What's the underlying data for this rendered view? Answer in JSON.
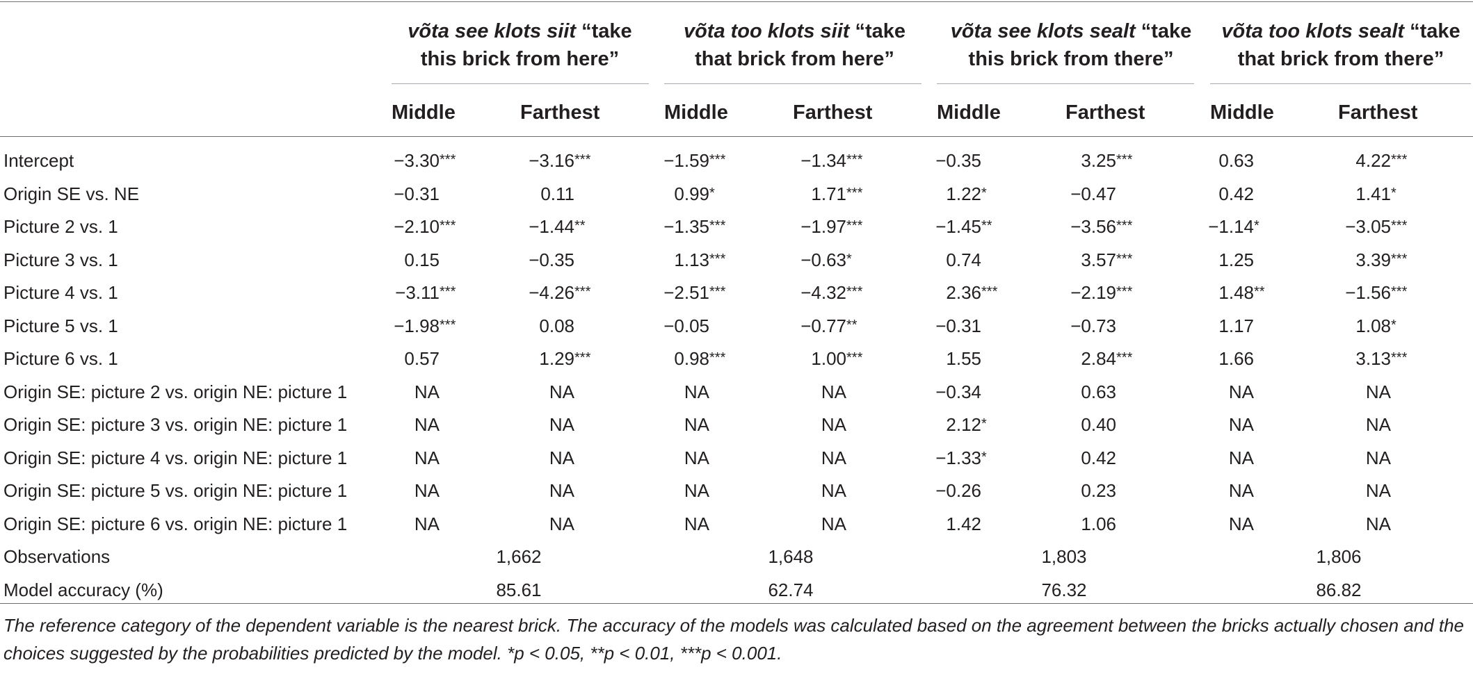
{
  "table": {
    "groups": [
      {
        "term": "võta see klots siit",
        "gloss_tail": " “take",
        "line2": "this brick from here”"
      },
      {
        "term": "võta too klots siit",
        "gloss_tail": " “take",
        "line2": "that brick from here”"
      },
      {
        "term": "võta see klots sealt",
        "gloss_tail": " “take",
        "line2": "this brick from there”"
      },
      {
        "term": "võta too klots sealt",
        "gloss_tail": " “take",
        "line2": "that brick from there”"
      }
    ],
    "subheaders": [
      "Middle",
      "Farthest",
      "Middle",
      "Farthest",
      "Middle",
      "Farthest",
      "Middle",
      "Farthest"
    ],
    "rows": [
      {
        "label": "Intercept",
        "cells": [
          [
            "−3.30",
            "***"
          ],
          [
            "−3.16",
            "***"
          ],
          [
            "−1.59",
            "***"
          ],
          [
            "−1.34",
            "***"
          ],
          [
            "−0.35",
            ""
          ],
          [
            "3.25",
            "***"
          ],
          [
            "0.63",
            ""
          ],
          [
            "4.22",
            "***"
          ]
        ]
      },
      {
        "label": "Origin SE vs. NE",
        "cells": [
          [
            "−0.31",
            ""
          ],
          [
            "0.11",
            ""
          ],
          [
            "0.99",
            "*"
          ],
          [
            "1.71",
            "***"
          ],
          [
            "1.22",
            "*"
          ],
          [
            "−0.47",
            ""
          ],
          [
            "0.42",
            ""
          ],
          [
            "1.41",
            "*"
          ]
        ]
      },
      {
        "label": "Picture 2 vs. 1",
        "cells": [
          [
            "−2.10",
            "***"
          ],
          [
            "−1.44",
            "**"
          ],
          [
            "−1.35",
            "***"
          ],
          [
            "−1.97",
            "***"
          ],
          [
            "−1.45",
            "**"
          ],
          [
            "−3.56",
            "***"
          ],
          [
            "−1.14",
            "*"
          ],
          [
            "−3.05",
            "***"
          ]
        ]
      },
      {
        "label": "Picture 3 vs. 1",
        "cells": [
          [
            "0.15",
            ""
          ],
          [
            "−0.35",
            ""
          ],
          [
            "1.13",
            "***"
          ],
          [
            "−0.63",
            "*"
          ],
          [
            "0.74",
            ""
          ],
          [
            "3.57",
            "***"
          ],
          [
            "1.25",
            ""
          ],
          [
            "3.39",
            "***"
          ]
        ]
      },
      {
        "label": "Picture 4 vs. 1",
        "cells": [
          [
            "−3.11",
            "***"
          ],
          [
            "−4.26",
            "***"
          ],
          [
            "−2.51",
            "***"
          ],
          [
            "−4.32",
            "***"
          ],
          [
            "2.36",
            "***"
          ],
          [
            "−2.19",
            "***"
          ],
          [
            "1.48",
            "**"
          ],
          [
            "−1.56",
            "***"
          ]
        ]
      },
      {
        "label": "Picture 5 vs. 1",
        "cells": [
          [
            "−1.98",
            "***"
          ],
          [
            "0.08",
            ""
          ],
          [
            "−0.05",
            ""
          ],
          [
            "−0.77",
            "**"
          ],
          [
            "−0.31",
            ""
          ],
          [
            "−0.73",
            ""
          ],
          [
            "1.17",
            ""
          ],
          [
            "1.08",
            "*"
          ]
        ]
      },
      {
        "label": "Picture 6 vs. 1",
        "cells": [
          [
            "0.57",
            ""
          ],
          [
            "1.29",
            "***"
          ],
          [
            "0.98",
            "***"
          ],
          [
            "1.00",
            "***"
          ],
          [
            "1.55",
            ""
          ],
          [
            "2.84",
            "***"
          ],
          [
            "1.66",
            ""
          ],
          [
            "3.13",
            "***"
          ]
        ]
      },
      {
        "label": "Origin SE: picture 2 vs. origin NE: picture 1",
        "cells": [
          [
            "NA",
            ""
          ],
          [
            "NA",
            ""
          ],
          [
            "NA",
            ""
          ],
          [
            "NA",
            ""
          ],
          [
            "−0.34",
            ""
          ],
          [
            "0.63",
            ""
          ],
          [
            "NA",
            ""
          ],
          [
            "NA",
            ""
          ]
        ]
      },
      {
        "label": "Origin SE: picture 3 vs. origin NE: picture 1",
        "cells": [
          [
            "NA",
            ""
          ],
          [
            "NA",
            ""
          ],
          [
            "NA",
            ""
          ],
          [
            "NA",
            ""
          ],
          [
            "2.12",
            "*"
          ],
          [
            "0.40",
            ""
          ],
          [
            "NA",
            ""
          ],
          [
            "NA",
            ""
          ]
        ]
      },
      {
        "label": "Origin SE: picture 4 vs. origin NE: picture 1",
        "cells": [
          [
            "NA",
            ""
          ],
          [
            "NA",
            ""
          ],
          [
            "NA",
            ""
          ],
          [
            "NA",
            ""
          ],
          [
            "−1.33",
            "*"
          ],
          [
            "0.42",
            ""
          ],
          [
            "NA",
            ""
          ],
          [
            "NA",
            ""
          ]
        ]
      },
      {
        "label": "Origin SE: picture 5 vs. origin NE: picture 1",
        "cells": [
          [
            "NA",
            ""
          ],
          [
            "NA",
            ""
          ],
          [
            "NA",
            ""
          ],
          [
            "NA",
            ""
          ],
          [
            "−0.26",
            ""
          ],
          [
            "0.23",
            ""
          ],
          [
            "NA",
            ""
          ],
          [
            "NA",
            ""
          ]
        ]
      },
      {
        "label": "Origin SE: picture 6 vs. origin NE: picture 1",
        "cells": [
          [
            "NA",
            ""
          ],
          [
            "NA",
            ""
          ],
          [
            "NA",
            ""
          ],
          [
            "NA",
            ""
          ],
          [
            "1.42",
            ""
          ],
          [
            "1.06",
            ""
          ],
          [
            "NA",
            ""
          ],
          [
            "NA",
            ""
          ]
        ]
      }
    ],
    "summary": [
      {
        "label": "Observations",
        "values": [
          "1,662",
          "1,648",
          "1,803",
          "1,806"
        ]
      },
      {
        "label": "Model accuracy (%)",
        "values": [
          "85.61",
          "62.74",
          "76.32",
          "86.82"
        ]
      }
    ],
    "footnote": "The reference category of the dependent variable is the nearest brick. The accuracy of the models was calculated based on the agreement between the bricks actually chosen and the choices suggested by the probabilities predicted by the model. *p < 0.05, **p < 0.01, ***p < 0.001."
  }
}
